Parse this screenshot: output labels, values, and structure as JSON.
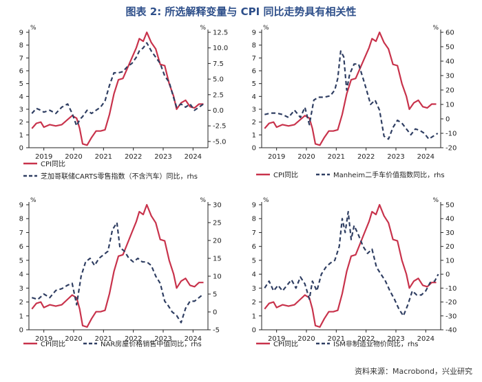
{
  "figure": {
    "title": "图表 2: 所选解释变量与 CPI 同比走势具有相关性",
    "source": "资料来源：Macrobond，兴业研究"
  },
  "colors": {
    "primary": "#c8324b",
    "secondary": "#2f3e62",
    "title": "#2e4f8a"
  },
  "chart_data": [
    {
      "type": "line",
      "left_unit": "%",
      "right_unit": "%",
      "ylim": [
        0,
        9
      ],
      "yticks": [
        0,
        1,
        2,
        3,
        4,
        5,
        6,
        7,
        8,
        9
      ],
      "ylim_right": [
        -6,
        12.5
      ],
      "yticks_right": [
        -5.0,
        -2.5,
        0.0,
        2.5,
        5.0,
        7.5,
        10.0,
        12.5
      ],
      "xlim": [
        2018.5,
        2024.5
      ],
      "xticks": [
        {
          "x": 2019,
          "label": "2019"
        },
        {
          "x": 2020,
          "label": "2020"
        },
        {
          "x": 2021,
          "label": "2021"
        },
        {
          "x": 2022,
          "label": "2022"
        },
        {
          "x": 2023,
          "label": "2023"
        },
        {
          "x": 2024,
          "label": "2024"
        }
      ],
      "series": [
        {
          "name": "CPI同比",
          "axis": "left",
          "style": "solid",
          "x": [
            2018.6,
            2018.75,
            2018.9,
            2019.0,
            2019.2,
            2019.4,
            2019.6,
            2019.8,
            2019.95,
            2020.1,
            2020.2,
            2020.3,
            2020.45,
            2020.6,
            2020.75,
            2020.9,
            2021.05,
            2021.2,
            2021.35,
            2021.5,
            2021.65,
            2021.8,
            2021.95,
            2022.1,
            2022.2,
            2022.33,
            2022.45,
            2022.6,
            2022.75,
            2022.9,
            2023.05,
            2023.2,
            2023.35,
            2023.45,
            2023.6,
            2023.75,
            2023.9,
            2024.05,
            2024.2,
            2024.35
          ],
          "y": [
            1.5,
            1.9,
            2.0,
            1.6,
            1.8,
            1.7,
            1.8,
            2.2,
            2.5,
            2.3,
            1.5,
            0.3,
            0.2,
            0.8,
            1.3,
            1.3,
            1.4,
            2.6,
            4.2,
            5.3,
            5.4,
            6.2,
            7.0,
            7.8,
            8.5,
            8.3,
            9.0,
            8.2,
            7.7,
            6.5,
            6.4,
            5.0,
            4.0,
            3.0,
            3.5,
            3.7,
            3.2,
            3.1,
            3.4,
            3.4
          ]
        },
        {
          "name": "芝加哥联储CARTS零售指数（不含汽车）同比，rhs",
          "axis": "right",
          "style": "dashed",
          "x": [
            2018.6,
            2018.75,
            2018.9,
            2019.0,
            2019.2,
            2019.4,
            2019.6,
            2019.8,
            2019.95,
            2020.1,
            2020.2,
            2020.3,
            2020.45,
            2020.6,
            2020.75,
            2020.9,
            2021.05,
            2021.2,
            2021.35,
            2021.5,
            2021.65,
            2021.8,
            2021.95,
            2022.1,
            2022.2,
            2022.33,
            2022.45,
            2022.6,
            2022.75,
            2022.9,
            2023.05,
            2023.2,
            2023.35,
            2023.45,
            2023.6,
            2023.75,
            2023.9,
            2024.05,
            2024.2,
            2024.35
          ],
          "y": [
            -0.5,
            0.3,
            0.0,
            -0.3,
            0.0,
            -0.5,
            0.5,
            1.0,
            -0.5,
            -2.5,
            -1.5,
            -1.0,
            0.0,
            -0.5,
            0.0,
            0.5,
            1.5,
            4.0,
            6.0,
            6.0,
            6.2,
            7.0,
            7.5,
            8.5,
            9.5,
            10.0,
            10.8,
            9.5,
            8.5,
            7.5,
            5.5,
            4.5,
            2.0,
            0.5,
            1.0,
            0.5,
            1.0,
            0.0,
            0.5,
            1.0
          ]
        }
      ]
    },
    {
      "type": "line",
      "left_unit": "%",
      "right_unit": "%",
      "ylim": [
        0,
        9
      ],
      "yticks": [
        0,
        1,
        2,
        3,
        4,
        5,
        6,
        7,
        8,
        9
      ],
      "ylim_right": [
        -20,
        60
      ],
      "yticks_right": [
        -20,
        -10,
        0,
        10,
        20,
        30,
        40,
        50,
        60
      ],
      "xlim": [
        2018.5,
        2024.5
      ],
      "xticks": [
        {
          "x": 2019,
          "label": "2019"
        },
        {
          "x": 2020,
          "label": "2020"
        },
        {
          "x": 2021,
          "label": "2021"
        },
        {
          "x": 2022,
          "label": "2022"
        },
        {
          "x": 2023,
          "label": "2023"
        },
        {
          "x": 2024,
          "label": "2024"
        }
      ],
      "series": [
        {
          "name": "CPI同比",
          "axis": "left",
          "style": "solid",
          "x": [
            2018.6,
            2018.75,
            2018.9,
            2019.0,
            2019.2,
            2019.4,
            2019.6,
            2019.8,
            2019.95,
            2020.1,
            2020.2,
            2020.3,
            2020.45,
            2020.6,
            2020.75,
            2020.9,
            2021.05,
            2021.2,
            2021.35,
            2021.5,
            2021.65,
            2021.8,
            2021.95,
            2022.1,
            2022.2,
            2022.33,
            2022.45,
            2022.6,
            2022.75,
            2022.9,
            2023.05,
            2023.2,
            2023.35,
            2023.45,
            2023.6,
            2023.75,
            2023.9,
            2024.05,
            2024.2,
            2024.35
          ],
          "y": [
            1.5,
            1.9,
            2.0,
            1.6,
            1.8,
            1.7,
            1.8,
            2.2,
            2.5,
            2.3,
            1.5,
            0.3,
            0.2,
            0.8,
            1.3,
            1.3,
            1.4,
            2.6,
            4.2,
            5.3,
            5.4,
            6.2,
            7.0,
            7.8,
            8.5,
            8.3,
            9.0,
            8.2,
            7.7,
            6.5,
            6.4,
            5.0,
            4.0,
            3.0,
            3.5,
            3.7,
            3.2,
            3.1,
            3.4,
            3.4
          ]
        },
        {
          "name": "Manheim二手车价值指数同比，rhs",
          "axis": "right",
          "style": "dashed",
          "x": [
            2018.6,
            2018.8,
            2019.0,
            2019.2,
            2019.4,
            2019.6,
            2019.8,
            2019.95,
            2020.1,
            2020.25,
            2020.4,
            2020.6,
            2020.8,
            2020.95,
            2021.05,
            2021.15,
            2021.25,
            2021.35,
            2021.45,
            2021.6,
            2021.75,
            2021.9,
            2022.0,
            2022.15,
            2022.3,
            2022.45,
            2022.6,
            2022.75,
            2022.9,
            2023.05,
            2023.2,
            2023.35,
            2023.5,
            2023.65,
            2023.8,
            2023.95,
            2024.1,
            2024.25,
            2024.4
          ],
          "y": [
            3,
            4,
            4,
            3,
            1,
            6,
            1,
            8,
            -4,
            13,
            15,
            15,
            16,
            20,
            28,
            47,
            43,
            20,
            31,
            38,
            38,
            28,
            21,
            10,
            13,
            6,
            -12,
            -14,
            -6,
            -1,
            -3,
            -7,
            -11,
            -7,
            -8,
            -10,
            -14,
            -12,
            -10
          ]
        }
      ]
    },
    {
      "type": "line",
      "left_unit": "%",
      "right_unit": "%",
      "ylim": [
        0,
        9
      ],
      "yticks": [
        0,
        1,
        2,
        3,
        4,
        5,
        6,
        7,
        8,
        9
      ],
      "ylim_right": [
        -5,
        30
      ],
      "yticks_right": [
        -5,
        0,
        5,
        10,
        15,
        20,
        25,
        30
      ],
      "xlim": [
        2018.5,
        2024.5
      ],
      "xticks": [
        {
          "x": 2019,
          "label": "2019"
        },
        {
          "x": 2020,
          "label": "2020"
        },
        {
          "x": 2021,
          "label": "2021"
        },
        {
          "x": 2022,
          "label": "2022"
        },
        {
          "x": 2023,
          "label": "2023"
        },
        {
          "x": 2024,
          "label": "2024"
        }
      ],
      "series": [
        {
          "name": "CPI同比",
          "axis": "left",
          "style": "solid",
          "x": [
            2018.6,
            2018.75,
            2018.9,
            2019.0,
            2019.2,
            2019.4,
            2019.6,
            2019.8,
            2019.95,
            2020.1,
            2020.2,
            2020.3,
            2020.45,
            2020.6,
            2020.75,
            2020.9,
            2021.05,
            2021.2,
            2021.35,
            2021.5,
            2021.65,
            2021.8,
            2021.95,
            2022.1,
            2022.2,
            2022.33,
            2022.45,
            2022.6,
            2022.75,
            2022.9,
            2023.05,
            2023.2,
            2023.35,
            2023.45,
            2023.6,
            2023.75,
            2023.9,
            2024.05,
            2024.2,
            2024.35
          ],
          "y": [
            1.5,
            1.9,
            2.0,
            1.6,
            1.8,
            1.7,
            1.8,
            2.2,
            2.5,
            2.3,
            1.5,
            0.3,
            0.2,
            0.8,
            1.3,
            1.3,
            1.4,
            2.6,
            4.2,
            5.3,
            5.4,
            6.2,
            7.0,
            7.8,
            8.5,
            8.3,
            9.0,
            8.2,
            7.7,
            6.5,
            6.4,
            5.0,
            4.0,
            3.0,
            3.5,
            3.7,
            3.2,
            3.1,
            3.4,
            3.4
          ]
        },
        {
          "name": "NAR房屋价格销售中值同比，rhs",
          "axis": "right",
          "style": "dashed",
          "x": [
            2018.6,
            2018.8,
            2019.0,
            2019.2,
            2019.4,
            2019.6,
            2019.8,
            2019.95,
            2020.1,
            2020.25,
            2020.4,
            2020.55,
            2020.7,
            2020.85,
            2021.0,
            2021.15,
            2021.3,
            2021.45,
            2021.55,
            2021.7,
            2021.85,
            2022.0,
            2022.15,
            2022.3,
            2022.45,
            2022.6,
            2022.75,
            2022.9,
            2023.05,
            2023.15,
            2023.3,
            2023.45,
            2023.6,
            2023.75,
            2023.9,
            2024.05,
            2024.2,
            2024.35
          ],
          "y": [
            4,
            3.5,
            5,
            4,
            6,
            6.5,
            7.5,
            8,
            2,
            10,
            14,
            15,
            13,
            15,
            16,
            17,
            23,
            25,
            18,
            17,
            15,
            14,
            15,
            14,
            14,
            13,
            10,
            8,
            3,
            2,
            0,
            -1,
            -3,
            1,
            3,
            3,
            4,
            5
          ]
        }
      ]
    },
    {
      "type": "line",
      "left_unit": "%",
      "right_unit": "%",
      "ylim": [
        0,
        9
      ],
      "yticks": [
        0,
        1,
        2,
        3,
        4,
        5,
        6,
        7,
        8,
        9
      ],
      "ylim_right": [
        -40,
        50
      ],
      "yticks_right": [
        -40,
        -30,
        -20,
        -10,
        0,
        10,
        20,
        30,
        40,
        50
      ],
      "xlim": [
        2018.5,
        2024.5
      ],
      "xticks": [
        {
          "x": 2019,
          "label": "2019"
        },
        {
          "x": 2020,
          "label": "2020"
        },
        {
          "x": 2021,
          "label": "2021"
        },
        {
          "x": 2022,
          "label": "2022"
        },
        {
          "x": 2023,
          "label": "2023"
        },
        {
          "x": 2024,
          "label": "2024"
        }
      ],
      "series": [
        {
          "name": "CPI同比",
          "axis": "left",
          "style": "solid",
          "x": [
            2018.6,
            2018.75,
            2018.9,
            2019.0,
            2019.2,
            2019.4,
            2019.6,
            2019.8,
            2019.95,
            2020.1,
            2020.2,
            2020.3,
            2020.45,
            2020.6,
            2020.75,
            2020.9,
            2021.05,
            2021.2,
            2021.35,
            2021.5,
            2021.65,
            2021.8,
            2021.95,
            2022.1,
            2022.2,
            2022.33,
            2022.45,
            2022.6,
            2022.75,
            2022.9,
            2023.05,
            2023.2,
            2023.35,
            2023.45,
            2023.6,
            2023.75,
            2023.9,
            2024.05,
            2024.2,
            2024.35
          ],
          "y": [
            1.5,
            1.9,
            2.0,
            1.6,
            1.8,
            1.7,
            1.8,
            2.2,
            2.5,
            2.3,
            1.5,
            0.3,
            0.2,
            0.8,
            1.3,
            1.3,
            1.4,
            2.6,
            4.2,
            5.3,
            5.4,
            6.2,
            7.0,
            7.8,
            8.5,
            8.3,
            9.0,
            8.2,
            7.7,
            6.5,
            6.4,
            5.0,
            4.0,
            3.0,
            3.5,
            3.7,
            3.2,
            3.1,
            3.4,
            3.4
          ]
        },
        {
          "name": "ISM非制造业物价同比，rhs",
          "axis": "right",
          "style": "dashed",
          "x": [
            2018.6,
            2018.75,
            2018.9,
            2019.05,
            2019.2,
            2019.35,
            2019.5,
            2019.65,
            2019.8,
            2019.95,
            2020.1,
            2020.2,
            2020.35,
            2020.5,
            2020.65,
            2020.8,
            2020.95,
            2021.1,
            2021.2,
            2021.3,
            2021.4,
            2021.5,
            2021.6,
            2021.75,
            2021.9,
            2022.05,
            2022.2,
            2022.35,
            2022.5,
            2022.65,
            2022.8,
            2022.95,
            2023.1,
            2023.25,
            2023.4,
            2023.55,
            2023.7,
            2023.85,
            2024.0,
            2024.15,
            2024.3,
            2024.42
          ],
          "y": [
            -10,
            -5,
            -12,
            -8,
            -12,
            -8,
            -4,
            -10,
            -2,
            -7,
            -18,
            -5,
            -12,
            0,
            5,
            8,
            10,
            20,
            40,
            30,
            45,
            25,
            35,
            28,
            20,
            15,
            18,
            5,
            0,
            -5,
            -12,
            -18,
            -25,
            -30,
            -22,
            -12,
            -15,
            -15,
            -12,
            -6,
            -5,
            0
          ]
        }
      ]
    }
  ]
}
